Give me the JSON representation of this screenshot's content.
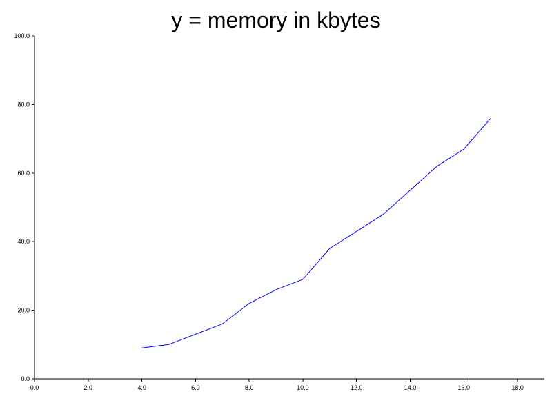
{
  "chart_data": {
    "type": "line",
    "title": "y = memory in kbytes",
    "xlabel": "",
    "ylabel": "",
    "xlim": [
      0,
      19
    ],
    "ylim": [
      0,
      100
    ],
    "x_ticks": [
      "0.0",
      "2.0",
      "4.0",
      "6.0",
      "8.0",
      "10.0",
      "12.0",
      "14.0",
      "16.0",
      "18.0"
    ],
    "y_ticks": [
      "0.0",
      "20.0",
      "40.0",
      "60.0",
      "80.0",
      "100.0"
    ],
    "grid": false,
    "series": [
      {
        "color": "#0000ff",
        "x": [
          4,
          5,
          6,
          7,
          8,
          9,
          10,
          11,
          12,
          13,
          14,
          15,
          16,
          17
        ],
        "y": [
          9,
          10,
          13,
          16,
          22,
          26,
          29,
          38,
          43,
          48,
          55,
          62,
          67,
          76
        ]
      }
    ]
  }
}
